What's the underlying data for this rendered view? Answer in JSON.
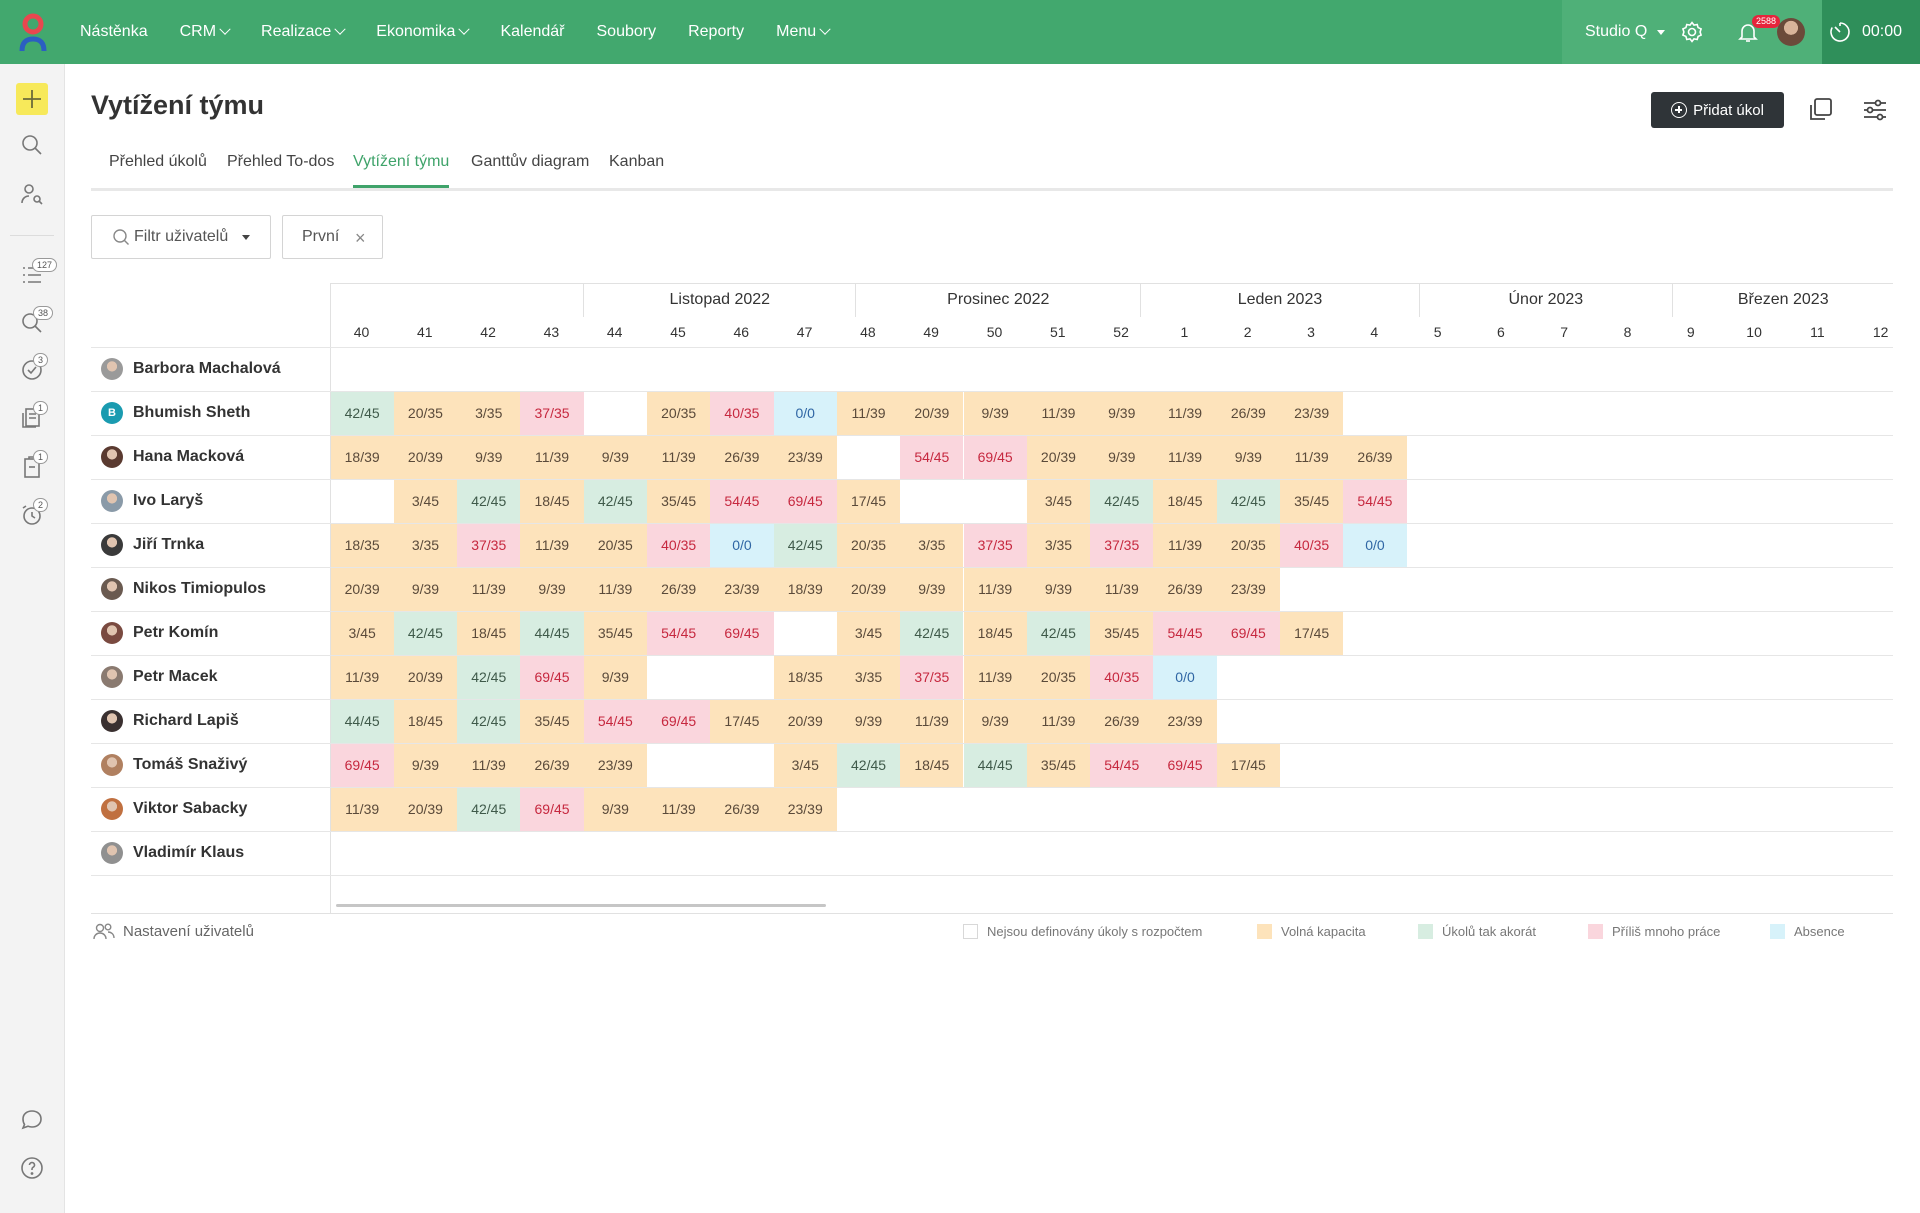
{
  "nav": {
    "items": [
      {
        "label": "Nástěnka",
        "dropdown": false
      },
      {
        "label": "CRM",
        "dropdown": true
      },
      {
        "label": "Realizace",
        "dropdown": true
      },
      {
        "label": "Ekonomika",
        "dropdown": true
      },
      {
        "label": "Kalendář",
        "dropdown": false
      },
      {
        "label": "Soubory",
        "dropdown": false
      },
      {
        "label": "Reporty",
        "dropdown": false
      },
      {
        "label": "Menu",
        "dropdown": true
      }
    ],
    "workspace": "Studio Q",
    "notifications_count": "2588",
    "timer": "00:00"
  },
  "sidebar": {
    "badges": {
      "tasks": "127",
      "search": "38",
      "approvals": "3",
      "documents": "1",
      "clipboard": "1",
      "alarms": "2"
    }
  },
  "page": {
    "title": "Vytížení týmu",
    "add_button": "Přidat úkol"
  },
  "tabs": [
    "Přehled úkolů",
    "Přehled To-dos",
    "Vytížení týmu",
    "Ganttův diagram",
    "Kanban"
  ],
  "active_tab": "Vytížení týmu",
  "filter": {
    "placeholder": "Filtr uživatelů",
    "chip": "První"
  },
  "months": [
    "Listopad 2022",
    "Prosinec 2022",
    "Leden 2023",
    "Únor 2023",
    "Březen 2023"
  ],
  "weeks": [
    40,
    41,
    42,
    43,
    44,
    45,
    46,
    47,
    48,
    49,
    50,
    51,
    52,
    1,
    2,
    3,
    4,
    5,
    6,
    7,
    8,
    9,
    10,
    11,
    12
  ],
  "users": [
    {
      "name": "Barbora Machalová",
      "cells": []
    },
    {
      "name": "Bhumish Sheth",
      "initial": "B",
      "cells": [
        "42/45|1",
        "20/35|0",
        "3/35|0",
        "37/35|2",
        "",
        "20/35|0",
        "40/35|2",
        "0/0|3",
        "11/39|0",
        "20/39|0",
        "9/39|0",
        "11/39|0",
        "9/39|0",
        "11/39|0",
        "26/39|0",
        "23/39|0"
      ]
    },
    {
      "name": "Hana Macková",
      "cells": [
        "18/39|0",
        "20/39|0",
        "9/39|0",
        "11/39|0",
        "9/39|0",
        "11/39|0",
        "26/39|0",
        "23/39|0",
        "",
        "54/45|2",
        "69/45|2",
        "20/39|0",
        "9/39|0",
        "11/39|0",
        "9/39|0",
        "11/39|0",
        "26/39|0"
      ]
    },
    {
      "name": "Ivo Laryš",
      "cells": [
        "",
        "3/45|0",
        "42/45|1",
        "18/45|0",
        "42/45|1",
        "35/45|0",
        "54/45|2",
        "69/45|2",
        "17/45|0",
        "",
        "",
        "3/45|0",
        "42/45|1",
        "18/45|0",
        "42/45|1",
        "35/45|0",
        "54/45|2"
      ]
    },
    {
      "name": "Jiří Trnka",
      "cells": [
        "18/35|0",
        "3/35|0",
        "37/35|2",
        "11/39|0",
        "20/35|0",
        "40/35|2",
        "0/0|3",
        "42/45|1",
        "20/35|0",
        "3/35|0",
        "37/35|2",
        "3/35|0",
        "37/35|2",
        "11/39|0",
        "20/35|0",
        "40/35|2",
        "0/0|3"
      ]
    },
    {
      "name": "Nikos Timiopulos",
      "cells": [
        "20/39|0",
        "9/39|0",
        "11/39|0",
        "9/39|0",
        "11/39|0",
        "26/39|0",
        "23/39|0",
        "18/39|0",
        "20/39|0",
        "9/39|0",
        "11/39|0",
        "9/39|0",
        "11/39|0",
        "26/39|0",
        "23/39|0"
      ]
    },
    {
      "name": "Petr Komín",
      "cells": [
        "3/45|0",
        "42/45|1",
        "18/45|0",
        "44/45|1",
        "35/45|0",
        "54/45|2",
        "69/45|2",
        "",
        "3/45|0",
        "42/45|1",
        "18/45|0",
        "42/45|1",
        "35/45|0",
        "54/45|2",
        "69/45|2",
        "17/45|0"
      ]
    },
    {
      "name": "Petr Macek",
      "cells": [
        "11/39|0",
        "20/39|0",
        "42/45|1",
        "69/45|2",
        "9/39|0",
        "",
        "",
        "18/35|0",
        "3/35|0",
        "37/35|2",
        "11/39|0",
        "20/35|0",
        "40/35|2",
        "0/0|3"
      ]
    },
    {
      "name": "Richard Lapiš",
      "cells": [
        "44/45|1",
        "18/45|0",
        "42/45|1",
        "35/45|0",
        "54/45|2",
        "69/45|2",
        "17/45|0",
        "20/39|0",
        "9/39|0",
        "11/39|0",
        "9/39|0",
        "11/39|0",
        "26/39|0",
        "23/39|0"
      ]
    },
    {
      "name": "Tomáš Snaživý",
      "cells": [
        "69/45|2",
        "9/39|0",
        "11/39|0",
        "26/39|0",
        "23/39|0",
        "",
        "",
        "3/45|0",
        "42/45|1",
        "18/45|0",
        "44/45|1",
        "35/45|0",
        "54/45|2",
        "69/45|2",
        "17/45|0"
      ]
    },
    {
      "name": "Viktor Sabacky",
      "cells": [
        "11/39|0",
        "20/39|0",
        "42/45|1",
        "69/45|2",
        "9/39|0",
        "11/39|0",
        "26/39|0",
        "23/39|0"
      ]
    },
    {
      "name": "Vladimír Klaus",
      "cells": []
    }
  ],
  "footer": {
    "settings": "Nastavení uživatelů"
  },
  "legend": [
    {
      "label": "Nejsou definovány úkoly s rozpočtem",
      "color": "#ffffff"
    },
    {
      "label": "Volná kapacita",
      "color": "#fde3bb"
    },
    {
      "label": "Úkolů tak akorát",
      "color": "#d7ede1"
    },
    {
      "label": "Příliš mnoho práce",
      "color": "#fad6dd"
    },
    {
      "label": "Absence",
      "color": "#d7f2fa"
    }
  ],
  "colors": {
    "brand": "#42a86e",
    "free": "#fde3bb",
    "ok": "#d7ede1",
    "over": "#fad6dd",
    "absence": "#d7f2fa"
  }
}
